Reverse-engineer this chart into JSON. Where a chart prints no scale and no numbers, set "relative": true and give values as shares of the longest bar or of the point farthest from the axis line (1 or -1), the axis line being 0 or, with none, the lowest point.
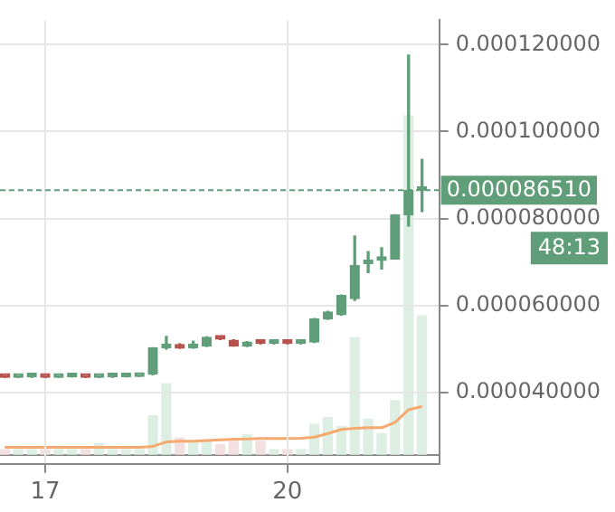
{
  "chart_data": [
    {
      "type": "candlestick",
      "x": [
        16.5,
        16.6667,
        16.8333,
        17,
        17.1667,
        17.3333,
        17.5,
        17.6667,
        17.8333,
        18,
        18.1667,
        18.3333,
        18.5,
        18.6667,
        18.8333,
        19,
        19.1667,
        19.3333,
        19.5,
        19.6667,
        19.8333,
        20,
        20.1667,
        20.3333,
        20.5,
        20.6667,
        20.8333,
        21,
        21.1667,
        21.3333,
        21.5,
        21.6667
      ],
      "ohlc": [
        [
          4.37e-05,
          4.38e-05,
          4.35e-05,
          4.35e-05
        ],
        [
          4.35e-05,
          4.37e-05,
          4.35e-05,
          4.37e-05
        ],
        [
          4.36e-05,
          4.37e-05,
          4.35e-05,
          4.36e-05
        ],
        [
          4.37e-05,
          4.37e-05,
          4.35e-05,
          4.35e-05
        ],
        [
          4.35e-05,
          4.37e-05,
          4.35e-05,
          4.37e-05
        ],
        [
          4.36e-05,
          4.38e-05,
          4.36e-05,
          4.38e-05
        ],
        [
          4.37e-05,
          4.37e-05,
          4.35e-05,
          4.35e-05
        ],
        [
          4.35e-05,
          4.37e-05,
          4.35e-05,
          4.36e-05
        ],
        [
          4.36e-05,
          4.37e-05,
          4.35e-05,
          4.36e-05
        ],
        [
          4.36e-05,
          4.37e-05,
          4.36e-05,
          4.37e-05
        ],
        [
          4.37e-05,
          4.39e-05,
          4.37e-05,
          4.38e-05
        ],
        [
          4.43e-05,
          5.03e-05,
          4.41e-05,
          5.03e-05
        ],
        [
          5.03e-05,
          5.29e-05,
          5e-05,
          5.1e-05
        ],
        [
          5.1e-05,
          5.12e-05,
          5.02e-05,
          5.02e-05
        ],
        [
          5.03e-05,
          5.18e-05,
          5.02e-05,
          5.04e-05
        ],
        [
          5.07e-05,
          5.28e-05,
          5.06e-05,
          5.27e-05
        ],
        [
          5.27e-05,
          5.28e-05,
          5.22e-05,
          5.23e-05
        ],
        [
          5.2e-05,
          5.21e-05,
          5.07e-05,
          5.07e-05
        ],
        [
          5.07e-05,
          5.17e-05,
          5.06e-05,
          5.16e-05
        ],
        [
          5.14e-05,
          5.15e-05,
          5.12e-05,
          5.13e-05
        ],
        [
          5.13e-05,
          5.15e-05,
          5.12e-05,
          5.14e-05
        ],
        [
          5.14e-05,
          5.15e-05,
          5.12e-05,
          5.13e-05
        ],
        [
          5.13e-05,
          5.15e-05,
          5.12e-05,
          5.14e-05
        ],
        [
          5.16e-05,
          5.7e-05,
          5.15e-05,
          5.69e-05
        ],
        [
          5.69e-05,
          5.87e-05,
          5.68e-05,
          5.85e-05
        ],
        [
          5.79e-05,
          6.24e-05,
          5.78e-05,
          6.23e-05
        ],
        [
          6.16e-05,
          7.6e-05,
          6.12e-05,
          6.92e-05
        ],
        [
          6.96e-05,
          7.24e-05,
          6.76e-05,
          7.04e-05
        ],
        [
          7.04e-05,
          7.33e-05,
          6.84e-05,
          7.09e-05
        ],
        [
          7.07e-05,
          8.09e-05,
          7.07e-05,
          8.09e-05
        ],
        [
          8.09e-05,
          0.0001176,
          7.83e-05,
          8.65e-05
        ],
        [
          8.65e-05,
          9.36e-05,
          8.16e-05,
          8.65e-05
        ]
      ],
      "colors": [
        "#b5504a",
        "#5f9e78",
        "#5f9e78",
        "#b5504a",
        "#5f9e78",
        "#5f9e78",
        "#b5504a",
        "#5f9e78",
        "#5f9e78",
        "#5f9e78",
        "#5f9e78",
        "#5f9e78",
        "#5f9e78",
        "#b5504a",
        "#5f9e78",
        "#5f9e78",
        "#b5504a",
        "#b5504a",
        "#5f9e78",
        "#b5504a",
        "#5f9e78",
        "#b5504a",
        "#5f9e78",
        "#5f9e78",
        "#5f9e78",
        "#5f9e78",
        "#5f9e78",
        "#5f9e78",
        "#5f9e78",
        "#5f9e78",
        "#5f9e78",
        "#5f9e78"
      ],
      "xlim": [
        16.44,
        21.88
      ],
      "xticks": [
        17,
        20
      ],
      "ylim": [
        2.36e-05,
        0.0001256
      ],
      "yticks": [
        {
          "value": 4e-05,
          "label": "0.000040000"
        },
        {
          "value": 6e-05,
          "label": "0.000060000"
        },
        {
          "value": 8e-05,
          "label": "0.000080000"
        },
        {
          "value": 0.0001,
          "label": "0.000100000"
        },
        {
          "value": 0.00012,
          "label": "0.000120000"
        }
      ],
      "grid": true,
      "legend": false,
      "ref_lines": [
        {
          "axis": "y",
          "value": 8.651e-05,
          "label": "0.000086510",
          "color": "#5f9e78",
          "line_style": "dashed"
        }
      ],
      "annotations": [
        "48:13"
      ]
    },
    {
      "type": "bar",
      "relative": true,
      "x": [
        16.5,
        16.6667,
        16.8333,
        17,
        17.1667,
        17.3333,
        17.5,
        17.6667,
        17.8333,
        18,
        18.1667,
        18.3333,
        18.5,
        18.6667,
        18.8333,
        19,
        19.1667,
        19.3333,
        19.5,
        19.6667,
        19.8333,
        20,
        20.1667,
        20.3333,
        20.5,
        20.6667,
        20.8333,
        21,
        21.1667,
        21.3333,
        21.5,
        21.6667
      ],
      "xlim": [
        16.44,
        21.88
      ],
      "series": [
        {
          "type": "bar",
          "values": [
            0.015,
            0.015,
            0.015,
            0.015,
            0.015,
            0.015,
            0.015,
            0.034,
            0.015,
            0.015,
            0.015,
            0.115,
            0.21,
            0.049,
            0.04,
            0.04,
            0.03,
            0.04,
            0.06,
            0.04,
            0.015,
            0.015,
            0.015,
            0.09,
            0.11,
            0.084,
            0.345,
            0.105,
            0.062,
            0.16,
            1,
            0.41
          ],
          "colors": [
            "#f2dfe0",
            "#dcefe2",
            "#dcefe2",
            "#f2dfe0",
            "#dcefe2",
            "#dcefe2",
            "#f2dfe0",
            "#dcefe2",
            "#dcefe2",
            "#dcefe2",
            "#dcefe2",
            "#dcefe2",
            "#dcefe2",
            "#f2dfe0",
            "#dcefe2",
            "#dcefe2",
            "#f2dfe0",
            "#f2dfe0",
            "#dcefe2",
            "#f2dfe0",
            "#dcefe2",
            "#f2dfe0",
            "#dcefe2",
            "#dcefe2",
            "#dcefe2",
            "#dcefe2",
            "#dcefe2",
            "#dcefe2",
            "#dcefe2",
            "#dcefe2",
            "#dcefe2",
            "#dcefe2"
          ]
        },
        {
          "type": "line",
          "color": "#f5a96e",
          "values": [
            0.022,
            0.022,
            0.022,
            0.022,
            0.022,
            0.022,
            0.022,
            0.022,
            0.022,
            0.022,
            0.022,
            0.025,
            0.038,
            0.04,
            0.04,
            0.042,
            0.044,
            0.046,
            0.047,
            0.048,
            0.048,
            0.048,
            0.049,
            0.052,
            0.063,
            0.075,
            0.078,
            0.08,
            0.08,
            0.096,
            0.133,
            0.143
          ]
        }
      ]
    }
  ]
}
